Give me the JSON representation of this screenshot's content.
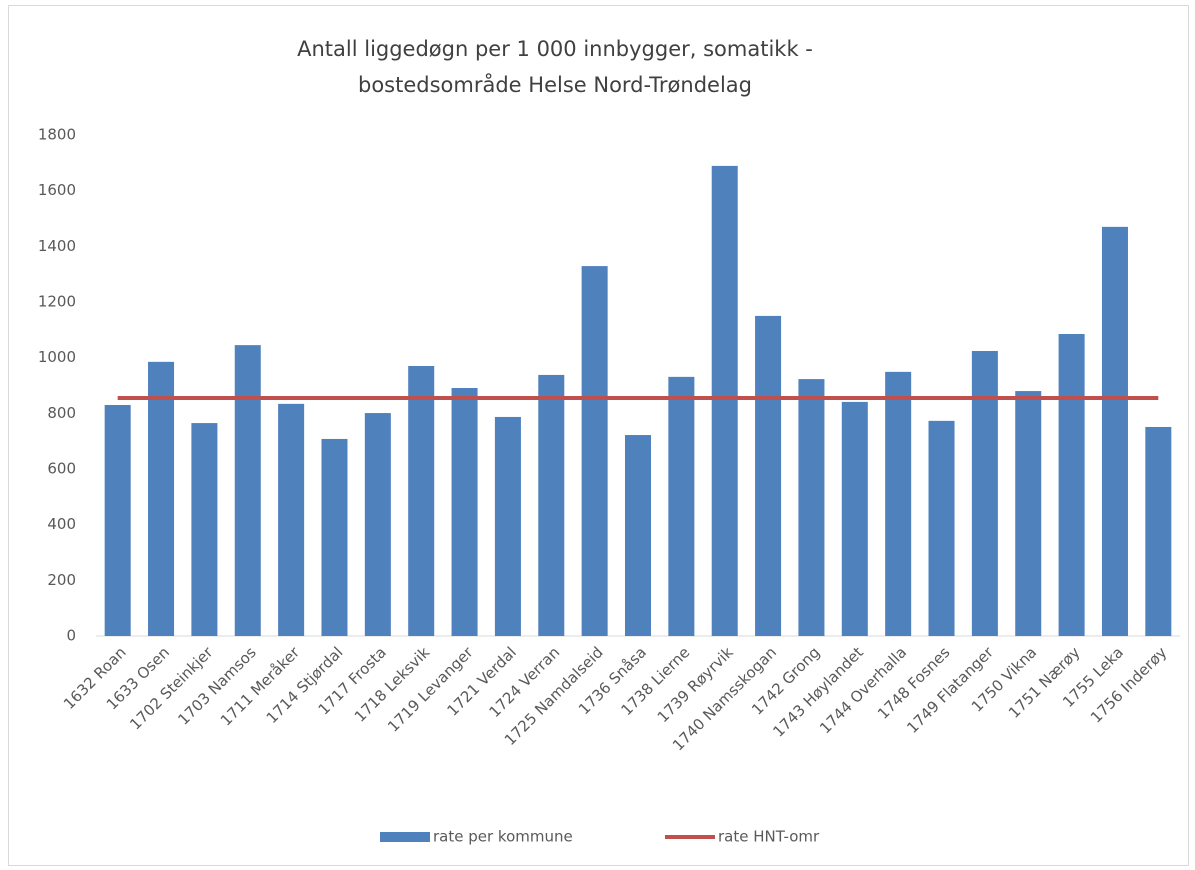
{
  "chart_data": {
    "type": "bar",
    "title": [
      "Antall liggedøgn per 1 000 innbygger, somatikk -",
      "bostedsområde Helse Nord-Trøndelag"
    ],
    "categories": [
      "1632 Roan",
      "1633 Osen",
      "1702 Steinkjer",
      "1703 Namsos",
      "1711 Meråker",
      "1714 Stjørdal",
      "1717 Frosta",
      "1718 Leksvik",
      "1719 Levanger",
      "1721 Verdal",
      "1724 Verran",
      "1725 Namdalseid",
      "1736 Snåsa",
      "1738 Lierne",
      "1739 Røyrvik",
      "1740 Namsskogan",
      "1742 Grong",
      "1743 Høylandet",
      "1744 Overhalla",
      "1748 Fosnes",
      "1749 Flatanger",
      "1750 Vikna",
      "1751 Nærøy",
      "1755 Leka",
      "1756 Inderøy"
    ],
    "series": [
      {
        "name": "rate per kommune",
        "type": "bar",
        "color": "#4f81bd",
        "values": [
          830,
          985,
          765,
          1045,
          834,
          708,
          801,
          970,
          891,
          787,
          938,
          1329,
          722,
          931,
          1689,
          1150,
          923,
          841,
          949,
          773,
          1024,
          880,
          1085,
          1470,
          751
        ]
      },
      {
        "name": "rate HNT-omr",
        "type": "line",
        "color": "#c0504d",
        "values": [
          855,
          855,
          855,
          855,
          855,
          855,
          855,
          855,
          855,
          855,
          855,
          855,
          855,
          855,
          855,
          855,
          855,
          855,
          855,
          855,
          855,
          855,
          855,
          855,
          855
        ]
      }
    ],
    "ylim": [
      0,
      1800
    ],
    "yticks": [
      0,
      200,
      400,
      600,
      800,
      1000,
      1200,
      1400,
      1600,
      1800
    ],
    "grid": false,
    "legend": "bottom"
  }
}
